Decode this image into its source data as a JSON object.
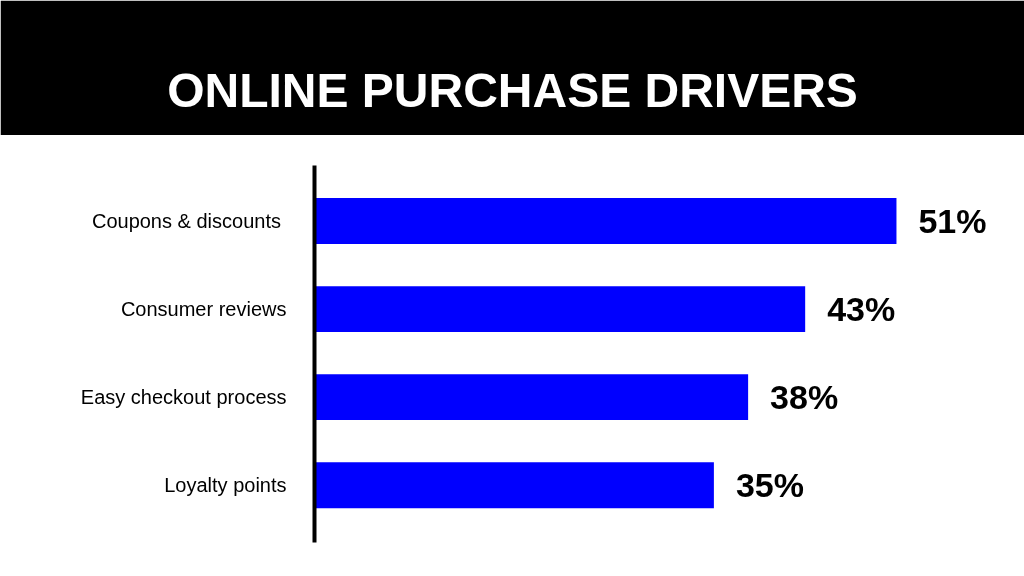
{
  "chart_data": {
    "type": "bar",
    "orientation": "horizontal",
    "title": "ONLINE PURCHASE DRIVERS",
    "categories": [
      "Coupons  & discounts",
      "Consumer reviews",
      "Easy checkout process",
      "Loyalty points"
    ],
    "values": [
      51,
      43,
      38,
      35
    ],
    "value_labels": [
      "51%",
      "43%",
      "38%",
      "35%"
    ],
    "color": "#0000ff",
    "tick_labels": "y"
  }
}
